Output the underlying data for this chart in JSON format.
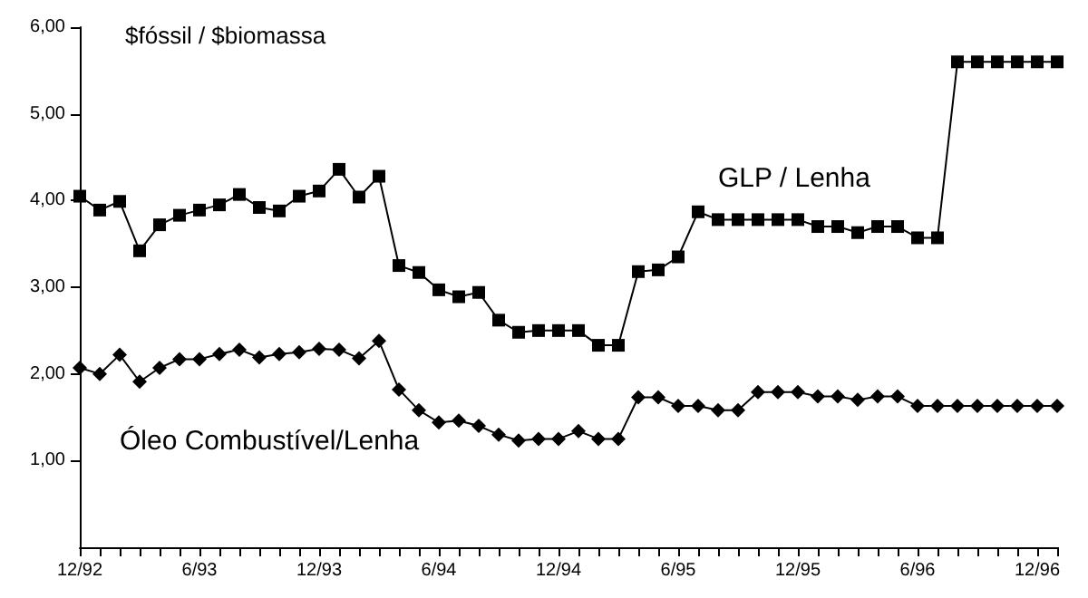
{
  "chart_data": {
    "type": "line",
    "ylabel": "$fóssil / $biomassa",
    "categories": [
      "12/92",
      null,
      null,
      null,
      null,
      null,
      "6/93",
      null,
      null,
      null,
      null,
      null,
      "12/93",
      null,
      null,
      null,
      null,
      null,
      "6/94",
      null,
      null,
      null,
      null,
      null,
      "12/94",
      null,
      null,
      null,
      null,
      null,
      "6/95",
      null,
      null,
      null,
      null,
      null,
      "12/95",
      null,
      null,
      null,
      null,
      null,
      "6/96",
      null,
      null,
      null,
      null,
      null,
      "12/96",
      null
    ],
    "series": [
      {
        "name": "GLP / Lenha",
        "color": "#000000",
        "marker": "square",
        "values": [
          4.05,
          3.89,
          3.99,
          3.42,
          3.72,
          3.83,
          3.89,
          3.95,
          4.07,
          3.92,
          3.88,
          4.05,
          4.11,
          4.36,
          4.04,
          4.28,
          3.25,
          3.17,
          2.97,
          2.89,
          2.94,
          2.62,
          2.48,
          2.5,
          2.5,
          2.5,
          2.33,
          2.33,
          3.18,
          3.2,
          3.35,
          3.87,
          3.78,
          3.78,
          3.78,
          3.78,
          3.78,
          3.7,
          3.7,
          3.63,
          3.7,
          3.7,
          3.57,
          3.57,
          5.6,
          5.6,
          5.6,
          5.6,
          5.6,
          5.6
        ]
      },
      {
        "name": "Óleo Combustível/Lenha",
        "color": "#000000",
        "marker": "diamond",
        "values": [
          2.07,
          2.0,
          2.22,
          1.91,
          2.07,
          2.17,
          2.17,
          2.23,
          2.28,
          2.19,
          2.23,
          2.25,
          2.29,
          2.28,
          2.18,
          2.38,
          1.82,
          1.58,
          1.44,
          1.46,
          1.4,
          1.3,
          1.23,
          1.25,
          1.25,
          1.34,
          1.25,
          1.25,
          1.73,
          1.73,
          1.63,
          1.63,
          1.58,
          1.58,
          1.79,
          1.79,
          1.79,
          1.74,
          1.74,
          1.7,
          1.74,
          1.74,
          1.63,
          1.63,
          1.63,
          1.63,
          1.63,
          1.63,
          1.63,
          1.63
        ]
      }
    ],
    "ylim": [
      0,
      6
    ],
    "yticks": [
      {
        "value": 1,
        "label": "1,00"
      },
      {
        "value": 2,
        "label": "2,00"
      },
      {
        "value": 3,
        "label": "3,00"
      },
      {
        "value": 4,
        "label": "4,00"
      },
      {
        "value": 5,
        "label": "5,00"
      },
      {
        "value": 6,
        "label": "6,00"
      }
    ],
    "grid": false,
    "legend": false,
    "line_style": "solid"
  }
}
